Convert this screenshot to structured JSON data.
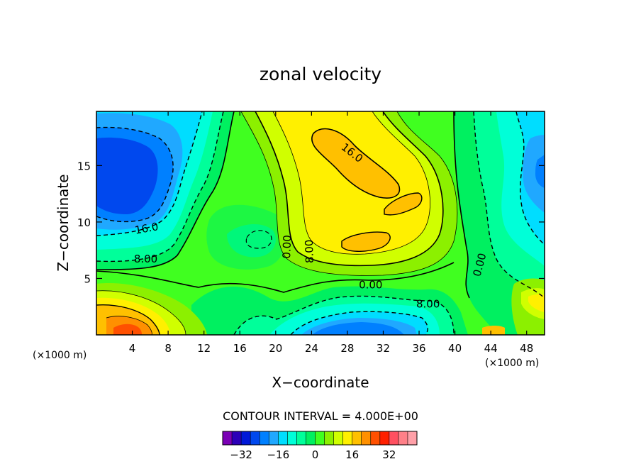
{
  "chart_data": {
    "type": "heatmap",
    "title": "zonal velocity",
    "xlabel": "X−coordinate",
    "ylabel": "Z−coordinate",
    "x_unit": "(×1000 m)",
    "xlim": [
      0,
      50
    ],
    "ylim": [
      0,
      19.8
    ],
    "x_ticks": [
      4,
      8,
      12,
      16,
      20,
      24,
      28,
      32,
      36,
      40,
      44,
      48
    ],
    "x_tick_labels": [
      "4",
      "8",
      "12",
      "16",
      "20",
      "24",
      "28",
      "32",
      "36",
      "40",
      "44",
      "48"
    ],
    "y_ticks": [
      5,
      10,
      15
    ],
    "y_tick_labels": [
      "5",
      "10",
      "15"
    ],
    "contour_interval_text": "CONTOUR INTERVAL = 4.000E+00",
    "contour_labels": [
      {
        "text": "16.0",
        "x": 28.5,
        "z": 16.1,
        "angle": 38
      },
      {
        "text": "16.0",
        "x": 5.6,
        "z": 9.4,
        "angle": -10
      },
      {
        "text": "8.00",
        "x": 5.5,
        "z": 6.7,
        "angle": 0
      },
      {
        "text": "0.00",
        "x": 21.3,
        "z": 7.8,
        "angle": -88
      },
      {
        "text": "8.00",
        "x": 23.8,
        "z": 7.4,
        "angle": -92
      },
      {
        "text": "0.00",
        "x": 30.6,
        "z": 4.4,
        "angle": 0
      },
      {
        "text": "8.00",
        "x": 37.0,
        "z": 2.7,
        "angle": 0
      },
      {
        "text": "0.00",
        "x": 42.8,
        "z": 6.2,
        "angle": -75
      }
    ],
    "colorbar": {
      "colors": [
        "#7a00b5",
        "#2c00b8",
        "#0018d8",
        "#0048ee",
        "#0080ff",
        "#20a8ff",
        "#00ddff",
        "#00ffd8",
        "#00ff9a",
        "#00f060",
        "#40ff20",
        "#8cf000",
        "#d0ff00",
        "#fff000",
        "#ffc000",
        "#ff9000",
        "#ff5000",
        "#ff2000",
        "#ff5060",
        "#ff8088",
        "#ffa0a8"
      ],
      "tick_values": [
        -32,
        -16,
        0,
        16,
        32
      ],
      "tick_labels": [
        "−32",
        "−16",
        "0",
        "16",
        "32"
      ],
      "range": [
        -40,
        44
      ]
    }
  }
}
